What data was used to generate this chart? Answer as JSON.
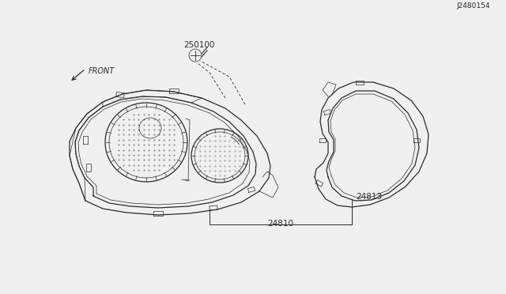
{
  "bg_color": "#f0f0f0",
  "line_color": "#2a2a2a",
  "text_color": "#2a2a2a",
  "label_24810": "24810",
  "label_24813": "24813",
  "label_250100": "250100",
  "label_front": "FRONT",
  "label_ref": "J2480154"
}
